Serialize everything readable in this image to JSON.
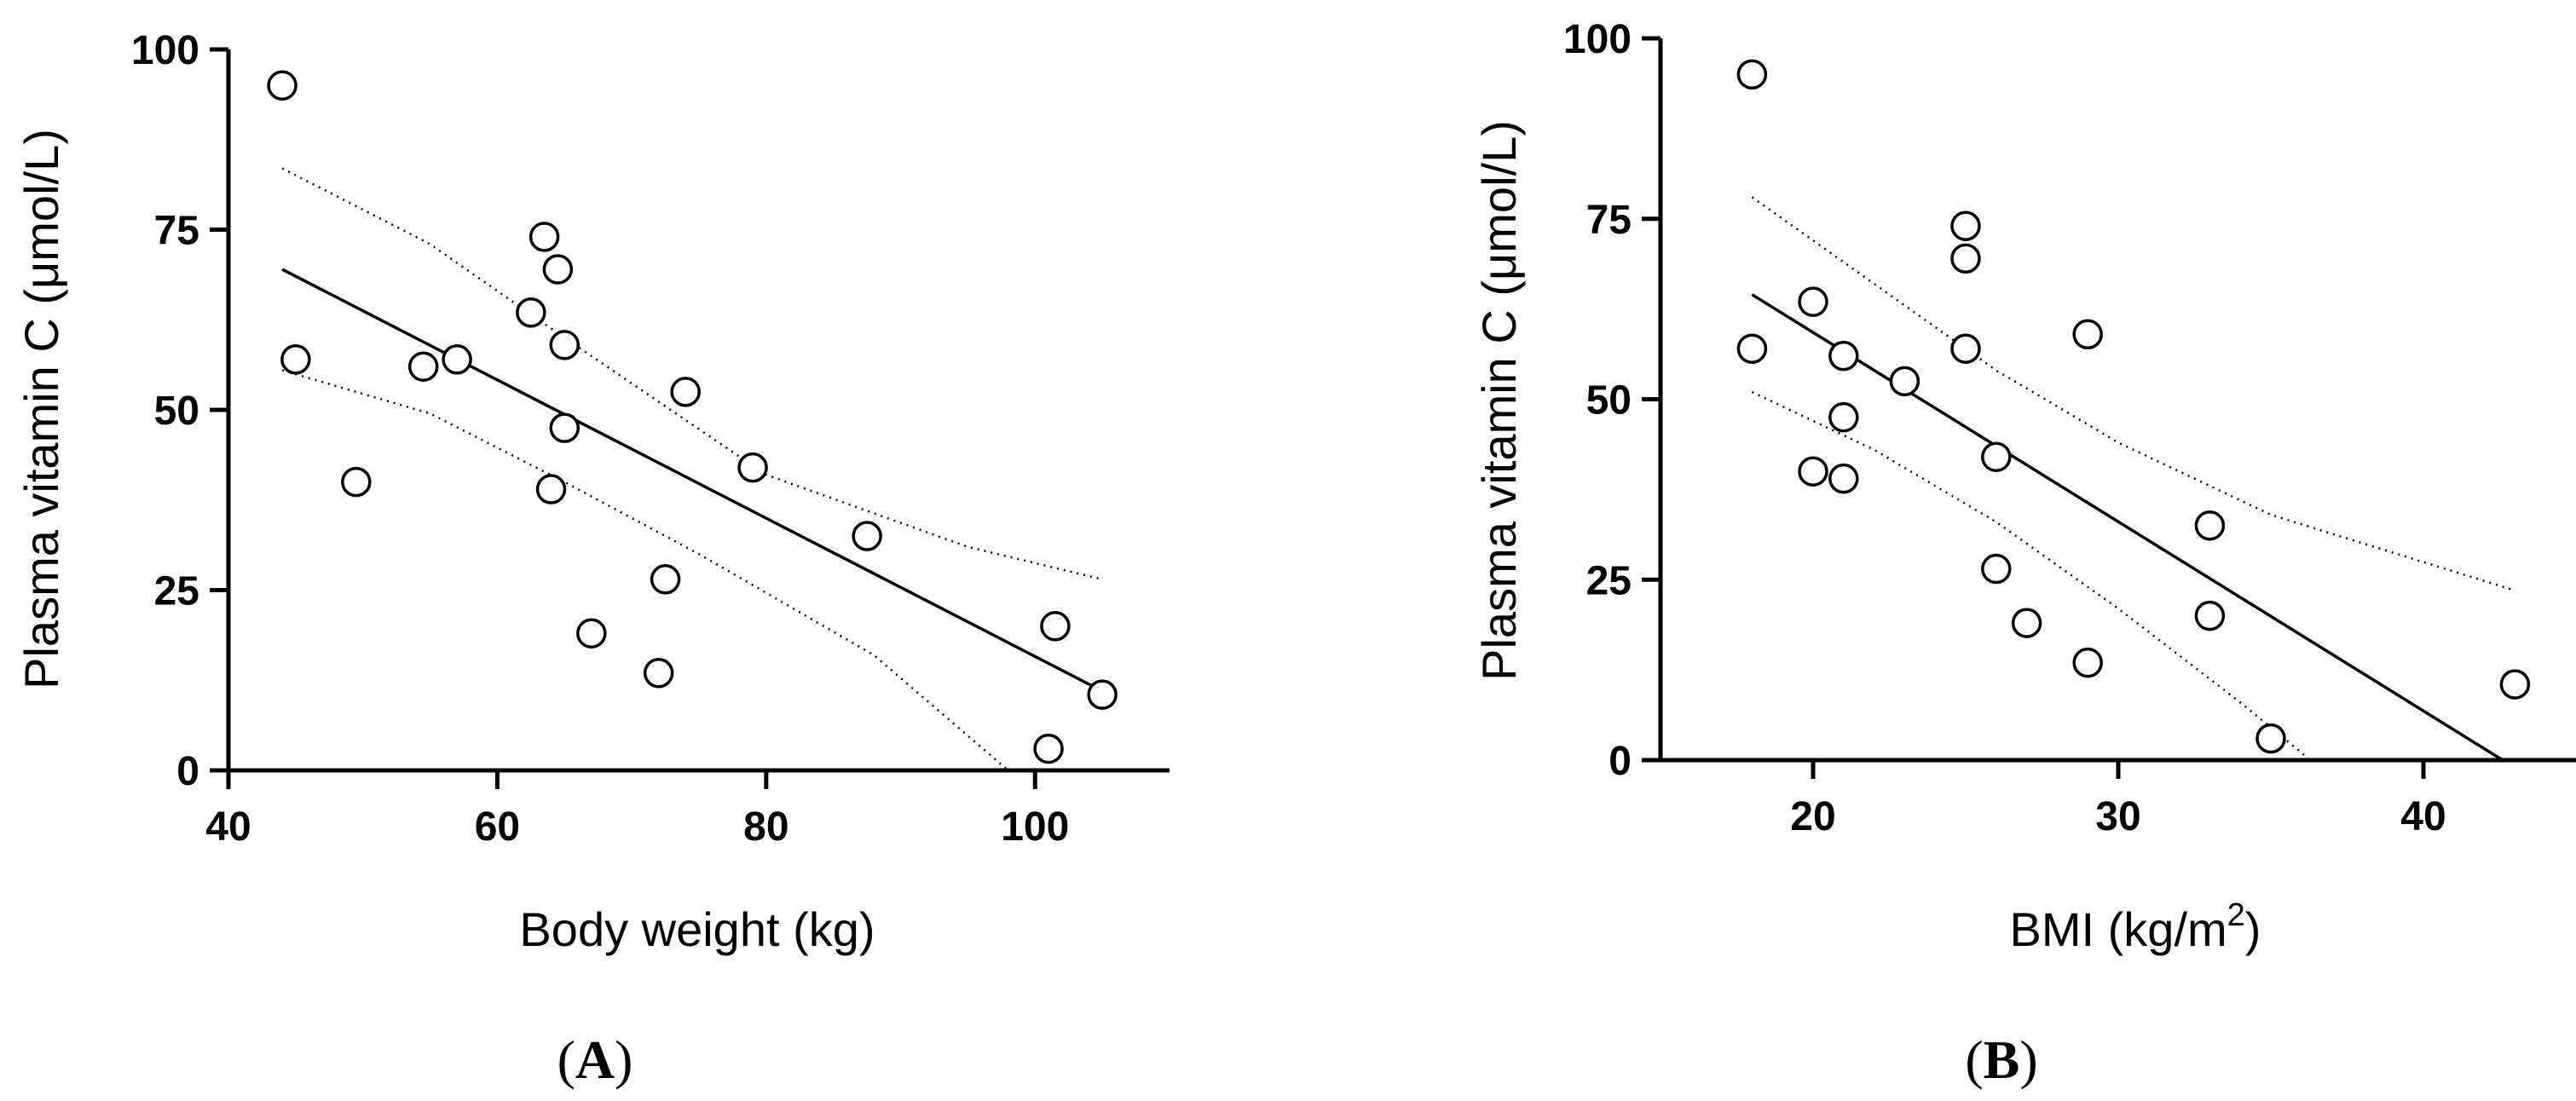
{
  "chart_data": [
    {
      "type": "scatter",
      "panel_label": "A",
      "paren_open": "(",
      "paren_close": ")",
      "xlabel": "Body weight (kg)",
      "ylabel": "Plasma vitamin C (μmol/L)",
      "xlim": [
        40,
        110
      ],
      "ylim": [
        0,
        100
      ],
      "xticks": [
        "40",
        "60",
        "80",
        "100"
      ],
      "yticks": [
        "0",
        "25",
        "50",
        "75",
        "100"
      ],
      "points": [
        {
          "x": 44,
          "y": 95
        },
        {
          "x": 45,
          "y": 57
        },
        {
          "x": 49.5,
          "y": 40
        },
        {
          "x": 54.5,
          "y": 56
        },
        {
          "x": 57,
          "y": 57
        },
        {
          "x": 62.5,
          "y": 63.5
        },
        {
          "x": 63.5,
          "y": 74
        },
        {
          "x": 64.5,
          "y": 69.5
        },
        {
          "x": 65,
          "y": 59
        },
        {
          "x": 65,
          "y": 47.5
        },
        {
          "x": 64,
          "y": 39
        },
        {
          "x": 67,
          "y": 19
        },
        {
          "x": 72,
          "y": 13.5
        },
        {
          "x": 72.5,
          "y": 26.5
        },
        {
          "x": 74,
          "y": 52.5
        },
        {
          "x": 79,
          "y": 42
        },
        {
          "x": 87.5,
          "y": 32.5
        },
        {
          "x": 101.5,
          "y": 20
        },
        {
          "x": 101,
          "y": 3
        },
        {
          "x": 105,
          "y": 10.5
        }
      ],
      "regression_line": [
        {
          "x": 44,
          "y": 69.5
        },
        {
          "x": 105,
          "y": 11
        }
      ],
      "ci_upper": [
        {
          "x": 44,
          "y": 83.5
        },
        {
          "x": 55,
          "y": 73
        },
        {
          "x": 65,
          "y": 60
        },
        {
          "x": 80,
          "y": 41
        },
        {
          "x": 95,
          "y": 31
        },
        {
          "x": 105,
          "y": 26.5
        }
      ],
      "ci_lower": [
        {
          "x": 44,
          "y": 55.5
        },
        {
          "x": 55,
          "y": 49.5
        },
        {
          "x": 65,
          "y": 40
        },
        {
          "x": 75,
          "y": 30
        },
        {
          "x": 88,
          "y": 16
        },
        {
          "x": 98,
          "y": 0
        }
      ]
    },
    {
      "type": "scatter",
      "panel_label": "B",
      "paren_open": "(",
      "paren_close": ")",
      "xlabel": "BMI (kg/m",
      "xlabel_superscript": "2",
      "xlabel_suffix": ")",
      "ylabel": "Plasma vitamin C (μmol/L)",
      "xlim": [
        15,
        45
      ],
      "ylim": [
        0,
        100
      ],
      "xticks": [
        "20",
        "30",
        "40"
      ],
      "yticks": [
        "0",
        "25",
        "50",
        "75",
        "100"
      ],
      "points": [
        {
          "x": 18,
          "y": 95
        },
        {
          "x": 18,
          "y": 57
        },
        {
          "x": 20,
          "y": 63.5
        },
        {
          "x": 20,
          "y": 40
        },
        {
          "x": 21,
          "y": 56
        },
        {
          "x": 21,
          "y": 47.5
        },
        {
          "x": 21,
          "y": 39
        },
        {
          "x": 23,
          "y": 52.5
        },
        {
          "x": 25,
          "y": 74
        },
        {
          "x": 25,
          "y": 69.5
        },
        {
          "x": 25,
          "y": 57
        },
        {
          "x": 26,
          "y": 42
        },
        {
          "x": 26,
          "y": 26.5
        },
        {
          "x": 27,
          "y": 19
        },
        {
          "x": 29,
          "y": 59
        },
        {
          "x": 29,
          "y": 13.5
        },
        {
          "x": 33,
          "y": 32.5
        },
        {
          "x": 33,
          "y": 20
        },
        {
          "x": 35,
          "y": 3
        },
        {
          "x": 43,
          "y": 10.5
        }
      ],
      "regression_line": [
        {
          "x": 18,
          "y": 64.5
        },
        {
          "x": 42.6,
          "y": 0
        }
      ],
      "ci_upper": [
        {
          "x": 18,
          "y": 78
        },
        {
          "x": 22,
          "y": 66
        },
        {
          "x": 26,
          "y": 54
        },
        {
          "x": 30,
          "y": 44
        },
        {
          "x": 35,
          "y": 34
        },
        {
          "x": 43,
          "y": 23.5
        }
      ],
      "ci_lower": [
        {
          "x": 18,
          "y": 51
        },
        {
          "x": 22,
          "y": 43
        },
        {
          "x": 26,
          "y": 33
        },
        {
          "x": 30,
          "y": 21
        },
        {
          "x": 34,
          "y": 8
        },
        {
          "x": 36.3,
          "y": 0
        }
      ]
    }
  ]
}
